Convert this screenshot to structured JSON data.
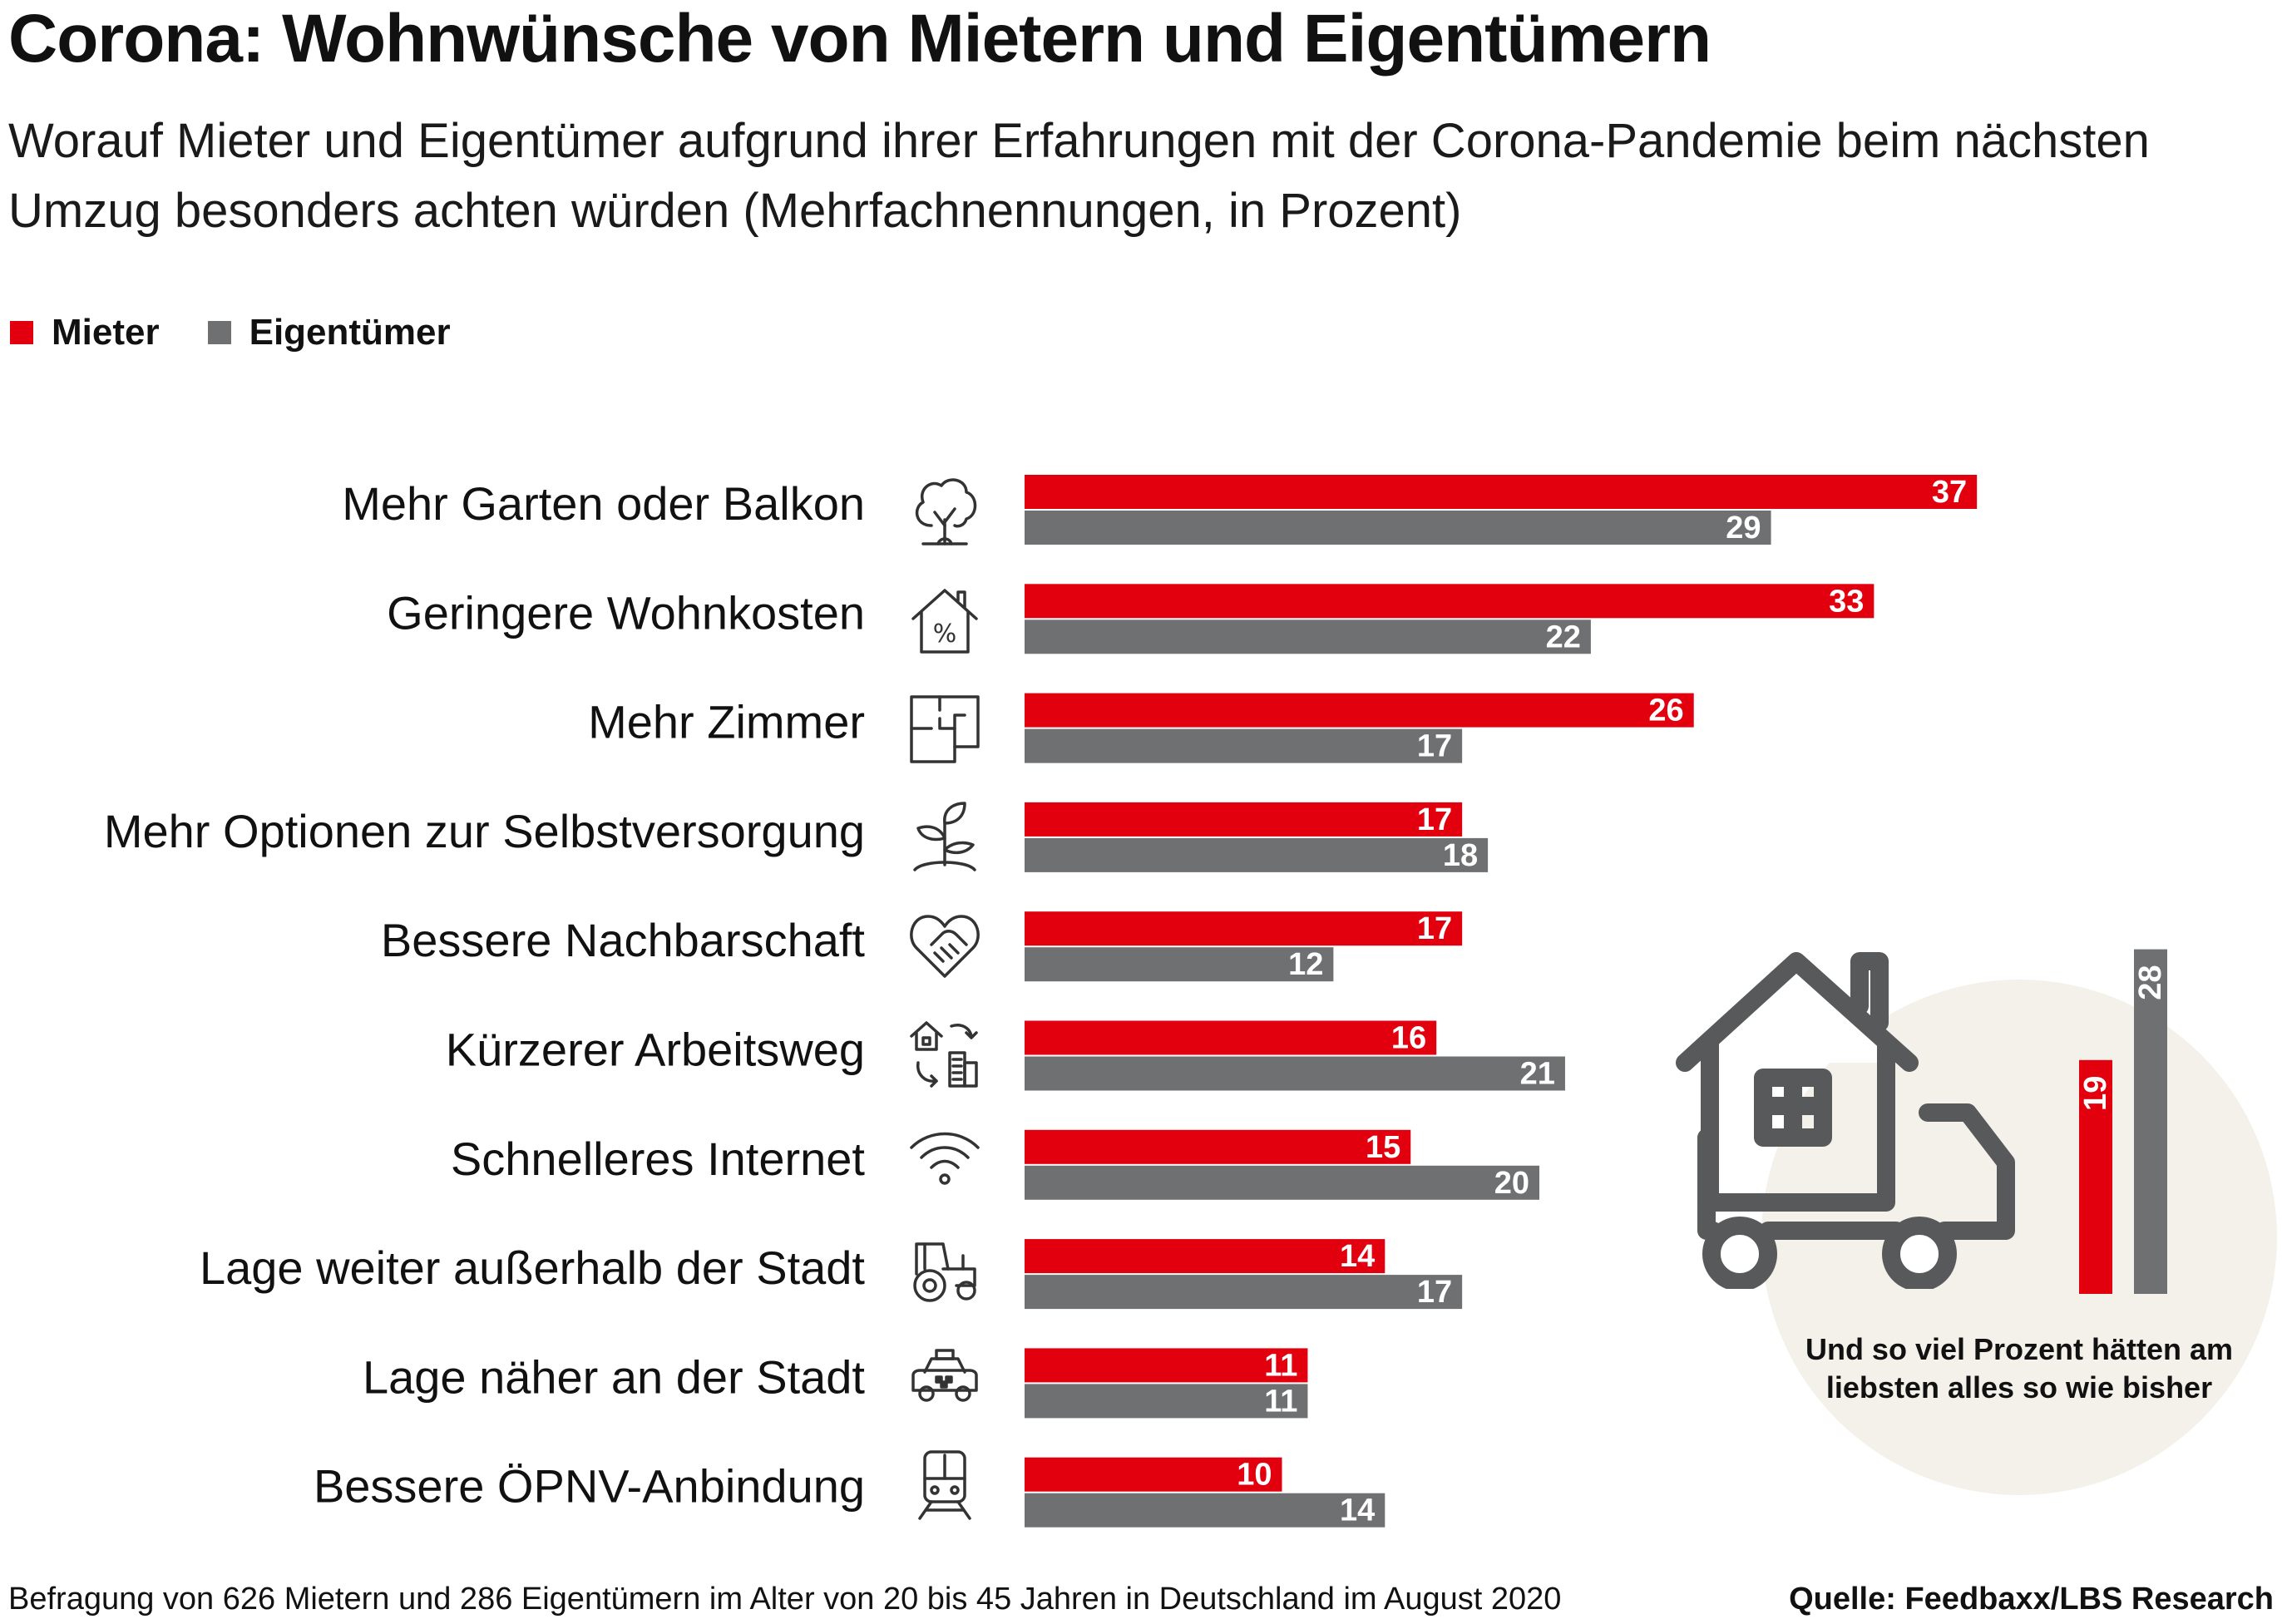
{
  "header": {
    "title": "Corona: Wohnwünsche von Mietern und Eigentümern",
    "subtitle": "Worauf Mieter und Eigentümer aufgrund ihrer Erfahrungen mit der Corona-Pandemie beim nächsten Umzug besonders achten würden (Mehrfachnennungen, in Prozent)"
  },
  "legend": [
    {
      "label": "Mieter",
      "color": "#e2000f"
    },
    {
      "label": "Eigentümer",
      "color": "#6f7072"
    }
  ],
  "chart_data": [
    {
      "type": "bar",
      "orientation": "horizontal",
      "categories": [
        "Mehr Garten oder Balkon",
        "Geringere Wohnkosten",
        "Mehr Zimmer",
        "Mehr Optionen zur Selbstversorgung",
        "Bessere Nachbarschaft",
        "Kürzerer Arbeitsweg",
        "Schnelleres Internet",
        "Lage weiter außerhalb der Stadt",
        "Lage näher an der Stadt",
        "Bessere ÖPNV-Anbindung"
      ],
      "icons": [
        "tree-icon",
        "house-percent-icon",
        "floorplan-icon",
        "seedling-icon",
        "heart-handshake-icon",
        "commute-icon",
        "wifi-icon",
        "tractor-icon",
        "taxi-icon",
        "train-icon"
      ],
      "series": [
        {
          "name": "Mieter",
          "color": "#e2000f",
          "values": [
            37,
            33,
            26,
            17,
            17,
            16,
            15,
            14,
            11,
            10
          ]
        },
        {
          "name": "Eigentümer",
          "color": "#6f7072",
          "values": [
            29,
            22,
            17,
            18,
            12,
            21,
            20,
            17,
            11,
            14
          ]
        }
      ],
      "xlim": [
        0,
        40
      ],
      "grid": false,
      "legend_position": "top-left"
    },
    {
      "type": "bar",
      "orientation": "vertical",
      "categories": [
        "Mieter",
        "Eigentümer"
      ],
      "values": [
        19,
        28
      ],
      "colors": [
        "#e2000f",
        "#6f7072"
      ],
      "annotation": "Und so viel Prozent hätten am liebsten alles so wie bisher",
      "icon": "moving-truck-house-icon"
    }
  ],
  "footer": {
    "note": "Befragung von 626 Mietern und 286 Eigentümern im Alter von 20 bis 45 Jahren in Deutschland im August 2020",
    "source": "Quelle: Feedbaxx/LBS Research"
  }
}
